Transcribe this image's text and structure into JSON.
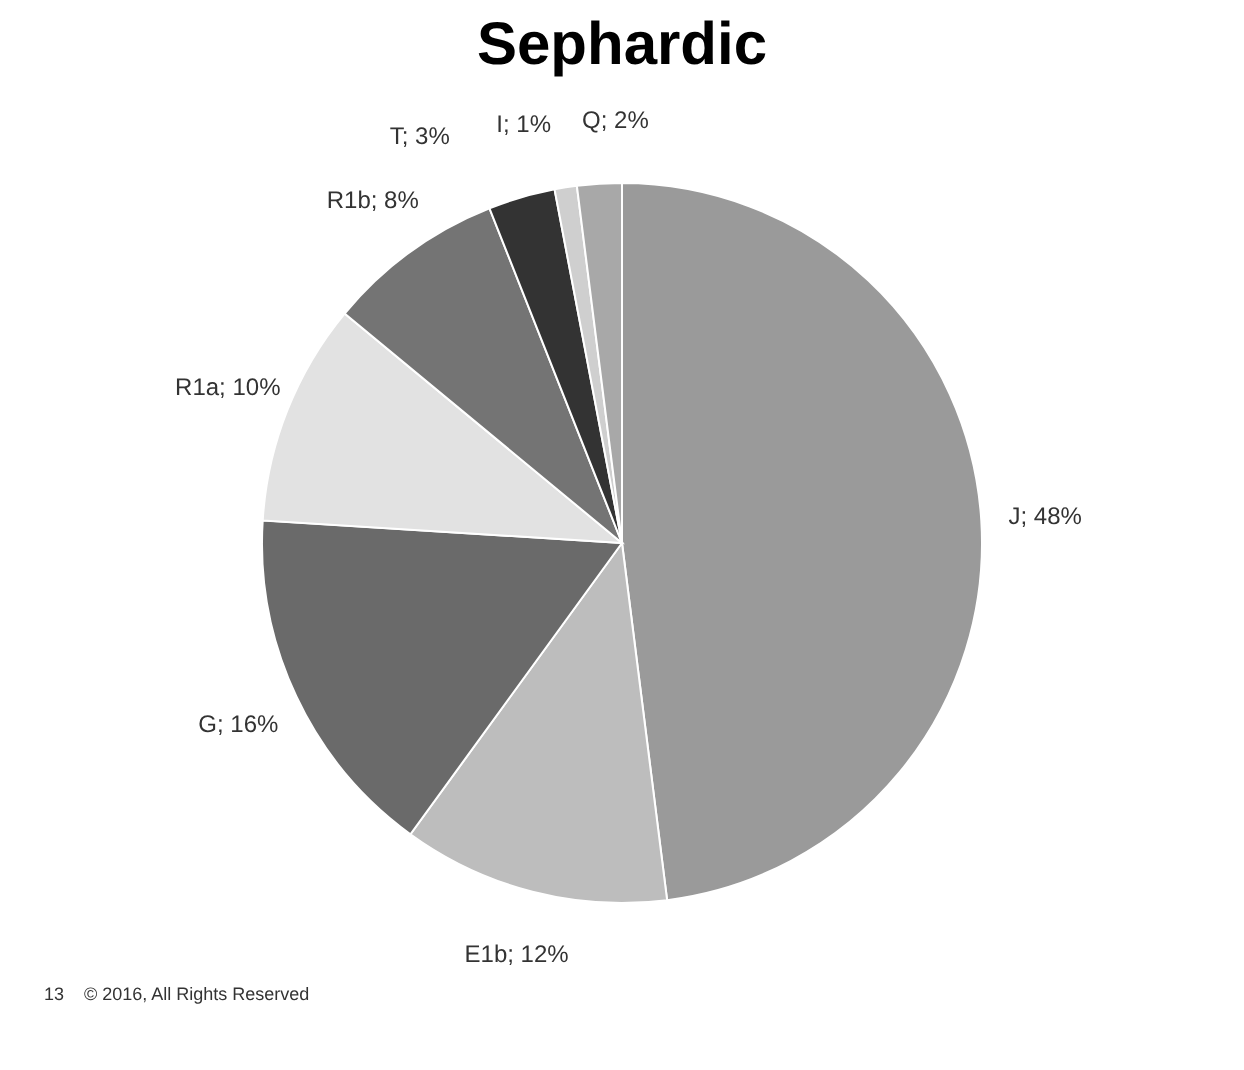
{
  "chart_data": {
    "type": "pie",
    "title": "Sephardic",
    "categories": [
      "J",
      "E1b",
      "G",
      "R1a",
      "R1b",
      "T",
      "I",
      "Q"
    ],
    "values": [
      48,
      12,
      16,
      10,
      8,
      3,
      1,
      2
    ],
    "colors": [
      "#9a9a9a",
      "#bdbdbd",
      "#6a6a6a",
      "#e2e2e2",
      "#747474",
      "#333333",
      "#cfcfcf",
      "#a8a8a8"
    ],
    "value_labels": [
      "48%",
      "12%",
      "16%",
      "10%",
      "8%",
      "3%",
      "1%",
      "2%"
    ],
    "legend": false,
    "annotations": [
      "13",
      "© 2016, All Rights Reserved"
    ]
  }
}
